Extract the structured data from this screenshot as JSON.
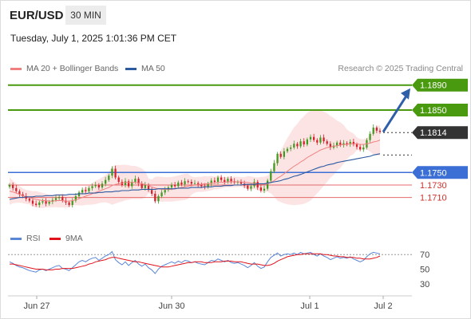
{
  "header": {
    "symbol": "EUR/USD",
    "timeframe": "30 MIN",
    "datetime": "Tuesday, July 1, 2025 1:01:36 PM CET"
  },
  "legend": {
    "ma20_label": "MA 20 + Bollinger Bands",
    "ma50_label": "MA 50",
    "credit": "Research © 2025 Trading Central",
    "rsi_label": "RSI",
    "rsi_ma_label": "9MA"
  },
  "colors": {
    "bull": "#3f9a1f",
    "bear": "#d4202a",
    "ma20": "#f08080",
    "bollinger_fill": "#fde4e4",
    "ma50": "#2c5aa0",
    "resistance": "#4a9a10",
    "support_blue": "#3b6fd6",
    "support_red": "#e46a6a",
    "current_price": "#333333",
    "arrow": "#2f5fa8",
    "rsi": "#5a86d6",
    "rsi_ma": "#e0131a"
  },
  "chart_data": [
    {
      "type": "candlestick",
      "title": "EUR/USD",
      "x_ticks": [
        "Jun 27",
        "Jun 30",
        "Jul 1",
        "Jul 2"
      ],
      "ylim": [
        1.1675,
        1.1905
      ],
      "levels": [
        {
          "value": 1.189,
          "label": "1.1890",
          "kind": "resistance"
        },
        {
          "value": 1.185,
          "label": "1.1850",
          "kind": "resistance"
        },
        {
          "value": 1.1814,
          "label": "1.1814",
          "kind": "current"
        },
        {
          "value": 1.175,
          "label": "1.1750",
          "kind": "support-major"
        },
        {
          "value": 1.173,
          "label": "1.1730",
          "kind": "support"
        },
        {
          "value": 1.171,
          "label": "1.1710",
          "kind": "support"
        }
      ],
      "close_series": [
        1.173,
        1.1725,
        1.172,
        1.1715,
        1.1712,
        1.1708,
        1.1705,
        1.17,
        1.1698,
        1.1702,
        1.1704,
        1.17,
        1.1703,
        1.1706,
        1.1709,
        1.1711,
        1.1705,
        1.1702,
        1.1698,
        1.1705,
        1.1712,
        1.1718,
        1.1722,
        1.172,
        1.1725,
        1.1728,
        1.173,
        1.1726,
        1.1732,
        1.1738,
        1.1745,
        1.1756,
        1.1742,
        1.1735,
        1.173,
        1.1736,
        1.1728,
        1.1735,
        1.174,
        1.1732,
        1.1725,
        1.173,
        1.1722,
        1.1716,
        1.1704,
        1.1712,
        1.1718,
        1.1722,
        1.1726,
        1.173,
        1.1728,
        1.1734,
        1.1731,
        1.1736,
        1.1735,
        1.1732,
        1.1733,
        1.173,
        1.1728,
        1.1727,
        1.1732,
        1.1737,
        1.1735,
        1.1742,
        1.1738,
        1.1735,
        1.174,
        1.1736,
        1.1734,
        1.1735,
        1.1732,
        1.1729,
        1.1724,
        1.1728,
        1.1735,
        1.1726,
        1.1721,
        1.1724,
        1.1737,
        1.1752,
        1.1765,
        1.178,
        1.1775,
        1.1784,
        1.1788,
        1.179,
        1.1796,
        1.1792,
        1.18,
        1.1795,
        1.1803,
        1.1807,
        1.1802,
        1.1798,
        1.1806,
        1.18,
        1.1796,
        1.179,
        1.1793,
        1.1798,
        1.1794,
        1.1797,
        1.1795,
        1.1799,
        1.1795,
        1.1791,
        1.1787,
        1.179,
        1.1802,
        1.1812,
        1.1822,
        1.1817,
        1.1815
      ],
      "ma20_series": [
        1.172,
        1.1719,
        1.1717,
        1.1715,
        1.1713,
        1.1711,
        1.171,
        1.1708,
        1.1707,
        1.1706,
        1.1705,
        1.1705,
        1.1704,
        1.1704,
        1.1705,
        1.1705,
        1.1705,
        1.1704,
        1.1704,
        1.1705,
        1.1706,
        1.1708,
        1.171,
        1.1712,
        1.1714,
        1.1716,
        1.1718,
        1.172,
        1.1722,
        1.1724,
        1.1726,
        1.1729,
        1.1731,
        1.1732,
        1.1733,
        1.1734,
        1.1734,
        1.1734,
        1.1734,
        1.1733,
        1.1732,
        1.1731,
        1.1729,
        1.1727,
        1.1725,
        1.1724,
        1.1723,
        1.1723,
        1.1723,
        1.1723,
        1.1724,
        1.1725,
        1.1726,
        1.1727,
        1.1728,
        1.1729,
        1.173,
        1.1731,
        1.1731,
        1.1732,
        1.1732,
        1.1733,
        1.1733,
        1.1734,
        1.1734,
        1.1734,
        1.1735,
        1.1735,
        1.1735,
        1.1735,
        1.1735,
        1.1734,
        1.1734,
        1.1733,
        1.1733,
        1.1732,
        1.1731,
        1.1731,
        1.1732,
        1.1734,
        1.1737,
        1.1741,
        1.1744,
        1.1748,
        1.1752,
        1.1756,
        1.176,
        1.1763,
        1.1767,
        1.177,
        1.1774,
        1.1777,
        1.178,
        1.1783,
        1.1786,
        1.1788,
        1.179,
        1.1791,
        1.1792,
        1.1793,
        1.1794,
        1.1795,
        1.1795,
        1.1796,
        1.1796,
        1.1796,
        1.1795,
        1.1795,
        1.1796,
        1.1797,
        1.1799,
        1.18,
        1.1802
      ],
      "ma50_series": [
        1.1707,
        1.1708,
        1.1709,
        1.171,
        1.171,
        1.1711,
        1.1711,
        1.1711,
        1.1712,
        1.1712,
        1.1712,
        1.1713,
        1.1713,
        1.1713,
        1.1714,
        1.1714,
        1.1714,
        1.1714,
        1.1715,
        1.1715,
        1.1715,
        1.1716,
        1.1716,
        1.1716,
        1.1717,
        1.1717,
        1.1717,
        1.1718,
        1.1718,
        1.1719,
        1.1719,
        1.1719,
        1.172,
        1.172,
        1.1721,
        1.1721,
        1.1721,
        1.1722,
        1.1722,
        1.1722,
        1.1723,
        1.1723,
        1.1723,
        1.1723,
        1.1723,
        1.1724,
        1.1724,
        1.1724,
        1.1724,
        1.1724,
        1.1724,
        1.1725,
        1.1725,
        1.1725,
        1.1725,
        1.1726,
        1.1726,
        1.1726,
        1.1726,
        1.1727,
        1.1727,
        1.1727,
        1.1728,
        1.1728,
        1.1728,
        1.1729,
        1.1729,
        1.1729,
        1.173,
        1.173,
        1.173,
        1.1731,
        1.1731,
        1.1731,
        1.1731,
        1.1732,
        1.1732,
        1.1732,
        1.1733,
        1.1734,
        1.1735,
        1.1736,
        1.1737,
        1.1739,
        1.174,
        1.1742,
        1.1744,
        1.1745,
        1.1747,
        1.1749,
        1.1751,
        1.1753,
        1.1755,
        1.1757,
        1.1759,
        1.176,
        1.1762,
        1.1763,
        1.1764,
        1.1766,
        1.1767,
        1.1768,
        1.1769,
        1.177,
        1.1771,
        1.1772,
        1.1773,
        1.1774,
        1.1775,
        1.1776,
        1.1778,
        1.1779,
        1.178
      ]
    },
    {
      "type": "line",
      "title": "RSI",
      "y_ticks": [
        "70",
        "50",
        "30"
      ],
      "ylim": [
        20,
        80
      ],
      "rsi_series": [
        60,
        58,
        55,
        53,
        52,
        50,
        48,
        47,
        46,
        49,
        50,
        48,
        50,
        52,
        54,
        55,
        51,
        50,
        48,
        52,
        56,
        60,
        62,
        60,
        63,
        65,
        66,
        62,
        65,
        68,
        70,
        74,
        63,
        59,
        56,
        60,
        55,
        59,
        62,
        57,
        54,
        57,
        52,
        49,
        44,
        50,
        54,
        56,
        58,
        60,
        58,
        61,
        59,
        62,
        61,
        59,
        60,
        58,
        57,
        56,
        59,
        62,
        61,
        64,
        62,
        60,
        62,
        59,
        58,
        59,
        57,
        55,
        52,
        55,
        59,
        54,
        51,
        53,
        60,
        66,
        69,
        72,
        68,
        70,
        71,
        70,
        72,
        70,
        73,
        71,
        72,
        73,
        70,
        68,
        71,
        68,
        66,
        63,
        65,
        67,
        65,
        66,
        65,
        67,
        64,
        62,
        60,
        62,
        67,
        71,
        73,
        72,
        71
      ],
      "rsi_ma_series": [
        57,
        57,
        56,
        55,
        54,
        53,
        52,
        51,
        50,
        50,
        50,
        49,
        49,
        49,
        50,
        50,
        51,
        51,
        51,
        51,
        52,
        53,
        54,
        55,
        57,
        58,
        60,
        61,
        62,
        63,
        65,
        66,
        66,
        65,
        64,
        63,
        62,
        61,
        60,
        60,
        59,
        58,
        57,
        56,
        55,
        54,
        53,
        53,
        53,
        54,
        55,
        56,
        57,
        58,
        59,
        59,
        60,
        60,
        60,
        59,
        59,
        59,
        60,
        60,
        60,
        61,
        61,
        61,
        60,
        60,
        60,
        59,
        58,
        57,
        57,
        57,
        56,
        55,
        55,
        56,
        58,
        61,
        63,
        65,
        67,
        68,
        69,
        70,
        70,
        71,
        71,
        71,
        71,
        71,
        71,
        70,
        70,
        69,
        68,
        68,
        67,
        67,
        66,
        66,
        66,
        65,
        65,
        64,
        64,
        64,
        65,
        66,
        68
      ]
    }
  ]
}
